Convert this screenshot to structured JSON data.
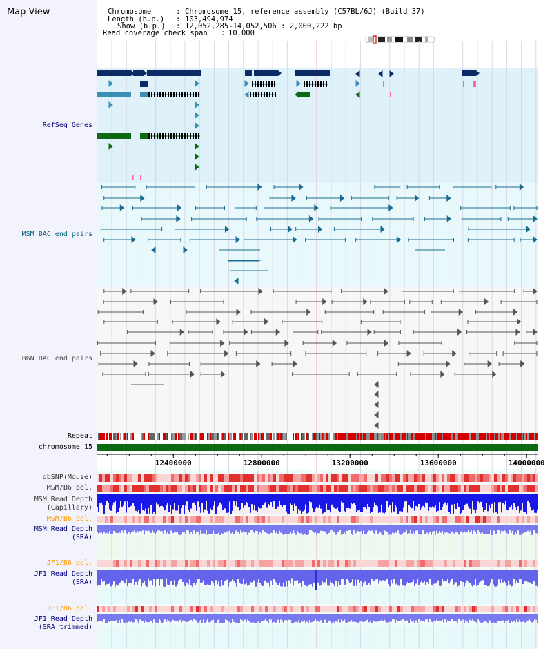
{
  "app": {
    "title": "Map View"
  },
  "info": {
    "chromosome_label": "Chromosome",
    "chromosome_value": "Chromosome 15, reference assembly (C57BL/6J) (Build 37)",
    "length_label": "Length (b.p.)",
    "length_value": "103,494,974",
    "show_label": "Show (b.p.)",
    "show_value": "12,052,285-14,052,506 : 2,000,222 bp",
    "coverage_label": "Read coverage check span",
    "coverage_value": "10,000"
  },
  "tracks": {
    "refseq": "RefSeq Genes",
    "msm_bac": "MSM BAC end pairs",
    "b6n_bac": "B6N BAC end pairs",
    "repeat": "Repeat",
    "chromosome": "chromosome 15",
    "dbsnp": "dbSNP(Mouse)",
    "msm_b6_pol": "MSM/B6 pol.",
    "msm_read_depth_cap_1": "MSM Read Depth",
    "msm_read_depth_cap_2": "(Capillary)",
    "msm_b6_pol_2": "MSM/B6 pol.",
    "msm_read_depth_sra_1": "MSM Read Depth",
    "msm_read_depth_sra_2": "(SRA)",
    "jf1_b6_pol": "JF1/B6 pol.",
    "jf1_read_depth_sra_1": "JF1 Read Depth",
    "jf1_read_depth_sra_2": "(SRA)",
    "jf1_b6_pol_2": "JF1/B6 pol.",
    "jf1_read_depth_trim_1": "JF1 Read Depth",
    "jf1_read_depth_trim_2": "(SRA trimmed)"
  },
  "axis": {
    "ticks": [
      {
        "value": 12400000,
        "label": "12400000"
      },
      {
        "value": 12800000,
        "label": "12800000"
      },
      {
        "value": 13200000,
        "label": "13200000"
      },
      {
        "value": 13600000,
        "label": "13600000"
      },
      {
        "value": 14000000,
        "label": "14000000"
      }
    ]
  },
  "colors": {
    "refseq_bg": "#dff1f9",
    "msm_bg": "#e8f8fb",
    "b6n_bg": "#f7f7f7",
    "gene_dark": "#0b2a66",
    "gene_mid": "#3a8fb5",
    "gene_green": "#0e6a12",
    "msm_line": "#1a6b8f",
    "b6n_line": "#555555",
    "chrom_green": "#0e6a12",
    "depth_blue": "#1818e6",
    "depth_light": "#7a7af0",
    "label_blue": "#000080",
    "label_teal": "#00607a",
    "label_orange": "#ff9900"
  }
}
